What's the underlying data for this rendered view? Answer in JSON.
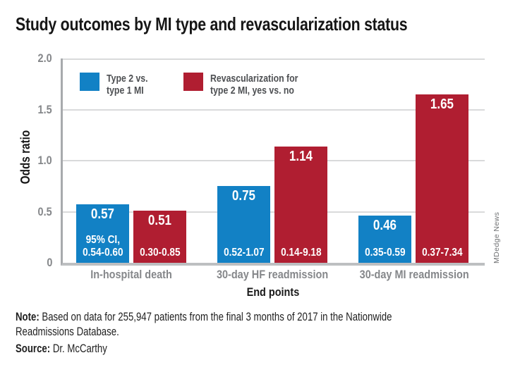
{
  "title": "Study outcomes by MI type and revascularization status",
  "credit": "MDedge News",
  "note": {
    "label": "Note:",
    "text": " Based on data for 255,947 patients from the final 3 months of 2017 in the Nationwide Readmissions Database."
  },
  "source": {
    "label": "Source:",
    "text": " Dr. McCarthy"
  },
  "colors": {
    "blue": "#1281c5",
    "red": "#b01e31",
    "tick_gray": "#85878a",
    "legend_text_gray": "#4d4f52",
    "axis_gray": "#a8aaad",
    "baseline_gray": "#bdbfc1",
    "gridline_gray": "#d9dadb",
    "credit_gray": "#6f7173"
  },
  "chart_data": {
    "type": "bar",
    "title": "Study outcomes by MI type and revascularization status",
    "xlabel": "End points",
    "ylabel": "Odds ratio",
    "ylim": [
      0,
      2.0
    ],
    "yticks": [
      {
        "value": 2.0,
        "label": "2.0"
      },
      {
        "value": 1.5,
        "label": "1.5"
      },
      {
        "value": 1.0,
        "label": "1.0"
      },
      {
        "value": 0.5,
        "label": "0.5"
      },
      {
        "value": 0.0,
        "label": "0"
      }
    ],
    "grid": "horizontal",
    "legend_position": "top-inside",
    "categories": [
      "In-hospital death",
      "30-day HF readmission",
      "30-day MI readmission"
    ],
    "series": [
      {
        "name": "Type 2 vs. type 1 MI",
        "legend_lines": [
          "Type 2 vs.",
          "type 1 MI"
        ],
        "color": "#1281c5",
        "values": [
          0.57,
          0.75,
          0.46
        ],
        "ci_labels": [
          [
            "95% CI,",
            "0.54-0.60"
          ],
          [
            "0.52-1.07"
          ],
          [
            "0.35-0.59"
          ]
        ]
      },
      {
        "name": "Revascularization for type 2 MI, yes vs. no",
        "legend_lines": [
          "Revascularization for",
          "type 2 MI, yes vs. no"
        ],
        "color": "#b01e31",
        "values": [
          0.51,
          1.14,
          1.65
        ],
        "ci_labels": [
          [
            "0.30-0.85"
          ],
          [
            "0.14-9.18"
          ],
          [
            "0.37-7.34"
          ]
        ]
      }
    ]
  }
}
